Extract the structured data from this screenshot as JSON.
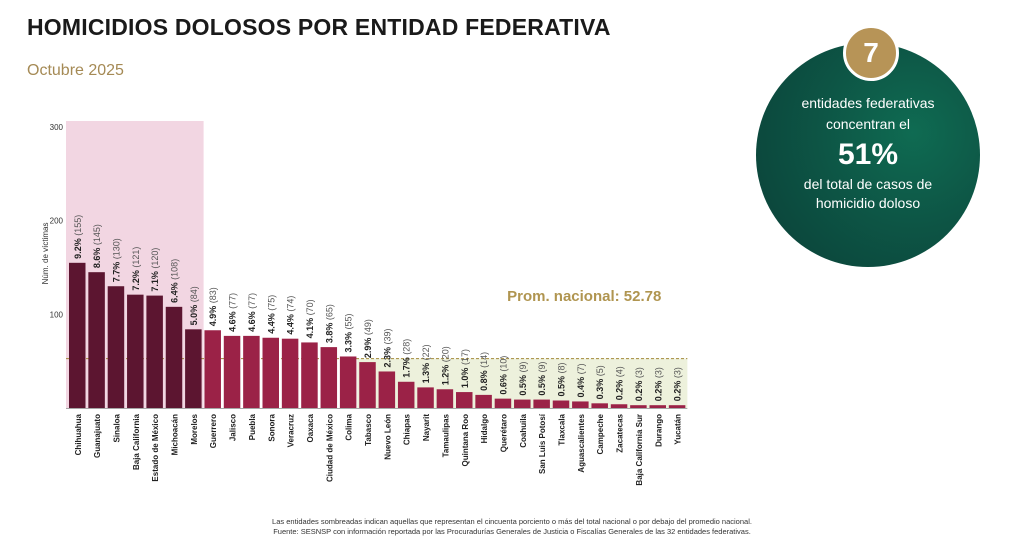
{
  "header": {
    "title": "HOMICIDIOS DOLOSOS POR ENTIDAD FEDERATIVA",
    "subtitle": "Octubre 2025"
  },
  "callout": {
    "number": "7",
    "line1": "entidades federativas",
    "line2": "concentran el",
    "percent": "51%",
    "line3": "del total de casos de",
    "line4": "homicidio doloso"
  },
  "footnote": {
    "line1": "Las entidades sombreadas indican aquellas que representan el cincuenta porciento o más del total nacional o por debajo del promedio nacional.",
    "line2": "Fuente: SESNSP con información reportada por las Procuradurías Generales de Justicia o Fiscalías Generales de las 32 entidades federativas."
  },
  "colors": {
    "bar_top": "#5c1530",
    "bar_rest": "#9b2247",
    "top_shade": "#f2d6e2",
    "below_avg_shade": "#edf1dc",
    "avg_line": "#a2893a",
    "avg_text": "#b09550",
    "axis_text": "#333333"
  },
  "chart_data": {
    "type": "bar",
    "ylabel": "Núm. de víctimas",
    "ylim": [
      0,
      300
    ],
    "yticks": [
      100,
      200,
      300
    ],
    "average": 52.78,
    "average_label": "Prom. nacional: 52.78",
    "top_group_count": 7,
    "categories": [
      "Chihuahua",
      "Guanajuato",
      "Sinaloa",
      "Baja California",
      "Estado de México",
      "Michoacán",
      "Morelos",
      "Guerrero",
      "Jalisco",
      "Puebla",
      "Sonora",
      "Veracruz",
      "Oaxaca",
      "Ciudad de México",
      "Colima",
      "Tabasco",
      "Nuevo León",
      "Chiapas",
      "Nayarit",
      "Tamaulipas",
      "Quintana Roo",
      "Hidalgo",
      "Querétaro",
      "Coahuila",
      "San Luis Potosí",
      "Tlaxcala",
      "Aguascalientes",
      "Campeche",
      "Zacatecas",
      "Baja California Sur",
      "Durango",
      "Yucatán"
    ],
    "values": [
      155,
      145,
      130,
      121,
      120,
      108,
      84,
      83,
      77,
      77,
      75,
      74,
      70,
      65,
      55,
      49,
      39,
      28,
      22,
      20,
      17,
      14,
      10,
      9,
      9,
      8,
      7,
      5,
      4,
      3,
      3,
      3
    ],
    "percent_labels": [
      "9.2%",
      "8.6%",
      "7.7%",
      "7.2%",
      "7.1%",
      "6.4%",
      "5.0%",
      "4.9%",
      "4.6%",
      "4.6%",
      "4.4%",
      "4.4%",
      "4.1%",
      "3.8%",
      "3.3%",
      "2.9%",
      "2.3%",
      "1.7%",
      "1.3%",
      "1.2%",
      "1.0%",
      "0.8%",
      "0.6%",
      "0.5%",
      "0.5%",
      "0.5%",
      "0.4%",
      "0.3%",
      "0.2%",
      "0.2%",
      "0.2%",
      "0.2%"
    ],
    "count_labels": [
      "(155)",
      "(145)",
      "(130)",
      "(121)",
      "(120)",
      "(108)",
      "(84)",
      "(83)",
      "(77)",
      "(77)",
      "(75)",
      "(74)",
      "(70)",
      "(65)",
      "(55)",
      "(49)",
      "(39)",
      "(28)",
      "(22)",
      "(20)",
      "(17)",
      "(14)",
      "(10)",
      "(9)",
      "(9)",
      "(8)",
      "(7)",
      "(5)",
      "(4)",
      "(3)",
      "(3)",
      "(3)"
    ]
  }
}
